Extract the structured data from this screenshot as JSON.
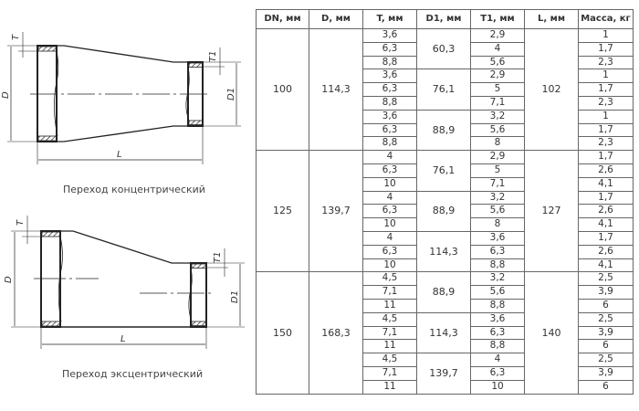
{
  "drawings": {
    "concentric": {
      "caption": "Переход концентрический",
      "labels": {
        "T": "T",
        "T1": "T1",
        "D": "D",
        "D1": "D1",
        "L": "L"
      }
    },
    "eccentric": {
      "caption": "Переход эксцентрический",
      "labels": {
        "T": "T",
        "T1": "T1",
        "D": "D",
        "D1": "D1",
        "L": "L"
      }
    }
  },
  "table": {
    "headers": [
      "DN, мм",
      "D, мм",
      "T, мм",
      "D1, мм",
      "T1, мм",
      "L, мм",
      "Масса, кг"
    ],
    "groups": [
      {
        "DN": "100",
        "D": "114,3",
        "L": "102",
        "subgroups": [
          {
            "D1": "60,3",
            "rows": [
              [
                "3,6",
                "2,9",
                "1"
              ],
              [
                "6,3",
                "4",
                "1,7"
              ],
              [
                "8,8",
                "5,6",
                "2,3"
              ]
            ]
          },
          {
            "D1": "76,1",
            "rows": [
              [
                "3,6",
                "2,9",
                "1"
              ],
              [
                "6,3",
                "5",
                "1,7"
              ],
              [
                "8,8",
                "7,1",
                "2,3"
              ]
            ]
          },
          {
            "D1": "88,9",
            "rows": [
              [
                "3,6",
                "3,2",
                "1"
              ],
              [
                "6,3",
                "5,6",
                "1,7"
              ],
              [
                "8,8",
                "8",
                "2,3"
              ]
            ]
          }
        ]
      },
      {
        "DN": "125",
        "D": "139,7",
        "L": "127",
        "subgroups": [
          {
            "D1": "76,1",
            "rows": [
              [
                "4",
                "2,9",
                "1,7"
              ],
              [
                "6,3",
                "5",
                "2,6"
              ],
              [
                "10",
                "7,1",
                "4,1"
              ]
            ]
          },
          {
            "D1": "88,9",
            "rows": [
              [
                "4",
                "3,2",
                "1,7"
              ],
              [
                "6,3",
                "5,6",
                "2,6"
              ],
              [
                "10",
                "8",
                "4,1"
              ]
            ]
          },
          {
            "D1": "114,3",
            "rows": [
              [
                "4",
                "3,6",
                "1,7"
              ],
              [
                "6,3",
                "6,3",
                "2,6"
              ],
              [
                "10",
                "8,8",
                "4,1"
              ]
            ]
          }
        ]
      },
      {
        "DN": "150",
        "D": "168,3",
        "L": "140",
        "subgroups": [
          {
            "D1": "88,9",
            "rows": [
              [
                "4,5",
                "3,2",
                "2,5"
              ],
              [
                "7,1",
                "5,6",
                "3,9"
              ],
              [
                "11",
                "8,8",
                "6"
              ]
            ]
          },
          {
            "D1": "114,3",
            "rows": [
              [
                "4,5",
                "3,6",
                "2,5"
              ],
              [
                "7,1",
                "6,3",
                "3,9"
              ],
              [
                "11",
                "8,8",
                "6"
              ]
            ]
          },
          {
            "D1": "139,7",
            "rows": [
              [
                "4,5",
                "4",
                "2,5"
              ],
              [
                "7,1",
                "6,3",
                "3,9"
              ],
              [
                "11",
                "10",
                "6"
              ]
            ]
          }
        ]
      }
    ]
  }
}
